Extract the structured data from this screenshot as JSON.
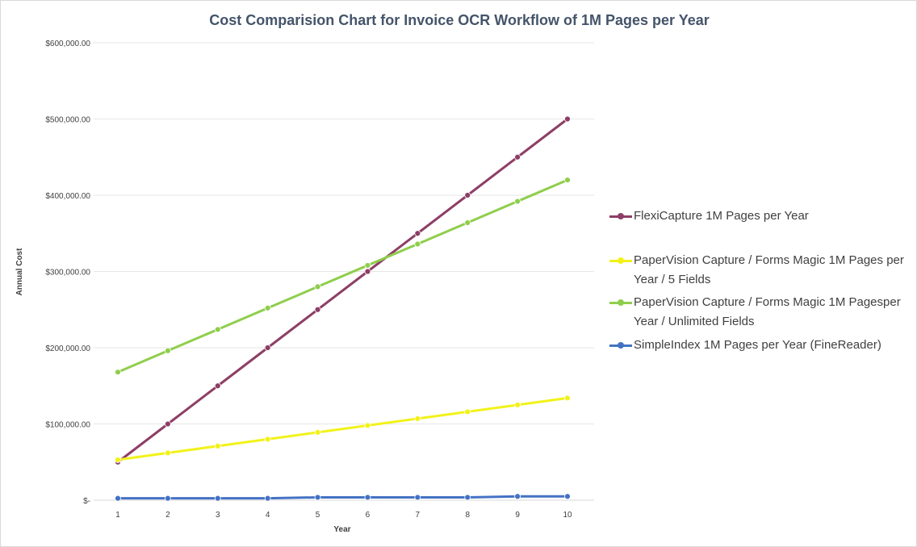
{
  "chart_data": {
    "type": "line",
    "title": "Cost Comparision  Chart for Invoice OCR Workflow of 1M Pages per Year",
    "xlabel": "Year",
    "ylabel": "Annual Cost",
    "x": [
      1,
      2,
      3,
      4,
      5,
      6,
      7,
      8,
      9,
      10
    ],
    "x_tick_labels": [
      "1",
      "2",
      "3",
      "4",
      "5",
      "6",
      "7",
      "8",
      "9",
      "10"
    ],
    "ylim": [
      0,
      600000
    ],
    "y_ticks": [
      0,
      100000,
      200000,
      300000,
      400000,
      500000,
      600000
    ],
    "y_tick_labels": [
      "$-",
      "$100,000.00",
      "$200,000.00",
      "$300,000.00",
      "$400,000.00",
      "$500,000.00",
      "$600,000.00"
    ],
    "grid": true,
    "legend_position": "right",
    "series": [
      {
        "name": "FlexiCapture 1M Pages per Year",
        "color": "#8e3e66",
        "values": [
          50000,
          100000,
          150000,
          200000,
          250000,
          300000,
          350000,
          400000,
          450000,
          500000
        ]
      },
      {
        "name": "PaperVision Capture / Forms Magic 1M Pages per Year / 5 Fields",
        "color": "#f2f21a",
        "values": [
          53000,
          62000,
          71000,
          80000,
          89000,
          98000,
          107000,
          116000,
          125000,
          134000
        ]
      },
      {
        "name": "PaperVision Capture / Forms Magic 1M Pagesper Year  / Unlimited Fields",
        "color": "#8fce4c",
        "values": [
          168000,
          196000,
          224000,
          252000,
          280000,
          308000,
          336000,
          364000,
          392000,
          420000
        ]
      },
      {
        "name": "SimpleIndex 1M Pages per Year (FineReader)",
        "color": "#4472c4",
        "values": [
          2500,
          2500,
          2500,
          2500,
          3750,
          3750,
          3750,
          3750,
          5000,
          5000
        ]
      }
    ]
  }
}
